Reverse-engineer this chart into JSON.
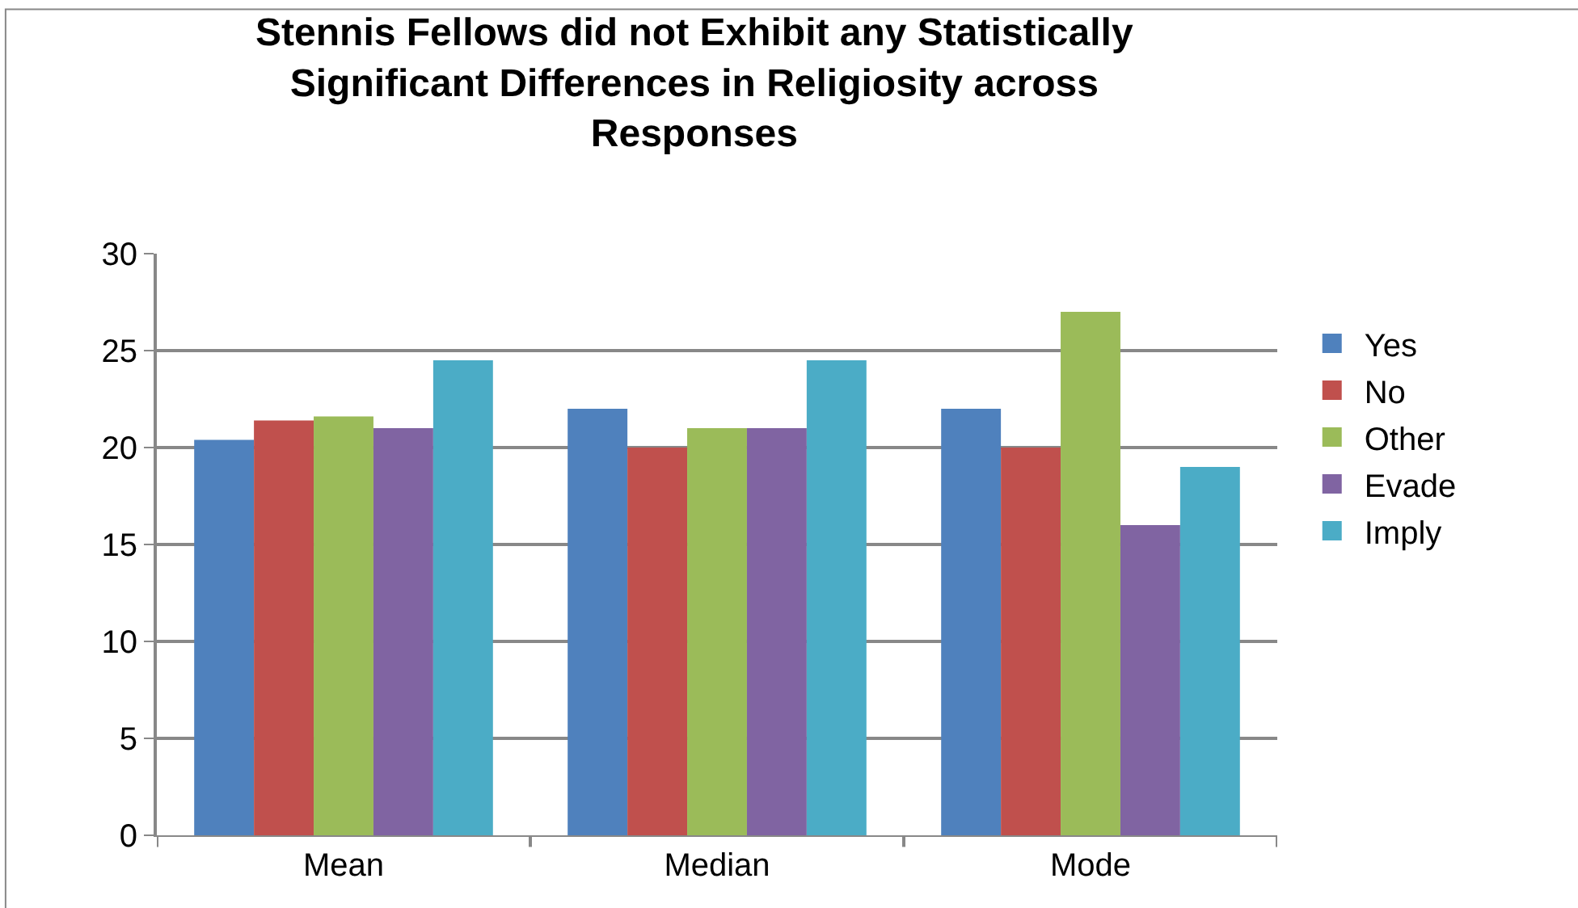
{
  "chart_data": {
    "type": "bar",
    "title": "Stennis Fellows did not Exhibit any Statistically Significant Differences in Religiosity across Responses",
    "categories": [
      "Mean",
      "Median",
      "Mode"
    ],
    "series": [
      {
        "name": "Yes",
        "color": "#4f81bd",
        "values": [
          20.4,
          22,
          22
        ]
      },
      {
        "name": "No",
        "color": "#c0504d",
        "values": [
          21.4,
          20,
          20
        ]
      },
      {
        "name": "Other",
        "color": "#9bbb59",
        "values": [
          21.6,
          21,
          27
        ]
      },
      {
        "name": "Evade",
        "color": "#8064a2",
        "values": [
          21,
          21,
          16
        ]
      },
      {
        "name": "Imply",
        "color": "#4bacc6",
        "values": [
          24.5,
          24.5,
          19
        ]
      }
    ],
    "ylim": [
      0,
      30
    ],
    "yticks": [
      0,
      5,
      10,
      15,
      20,
      25,
      30
    ],
    "grid": "y",
    "legend": "right"
  }
}
